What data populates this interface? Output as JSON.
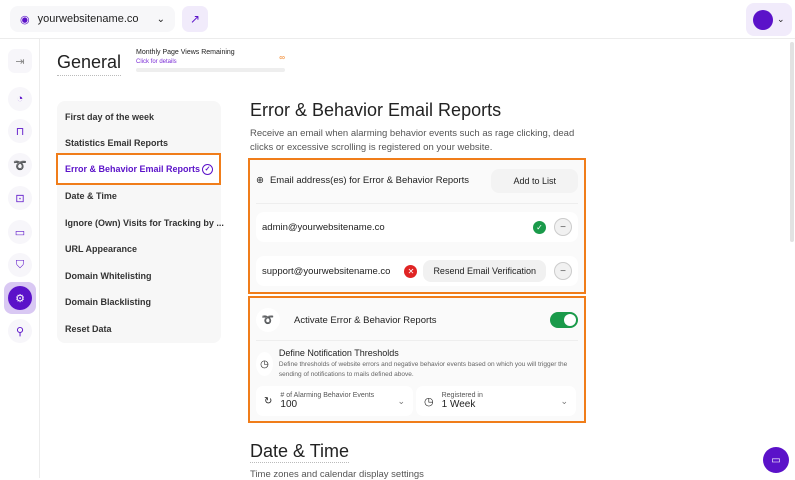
{
  "topbar": {
    "site": "yourwebsitename.co"
  },
  "header": {
    "title": "General",
    "page_views_label": "Monthly Page Views Remaining",
    "page_views_link": "Click for details",
    "page_views_value": "∞"
  },
  "sidebar": {
    "icons": [
      "exit-icon",
      "chart-pie-icon",
      "bag-icon",
      "behavior-icon",
      "scan-icon",
      "chat-icon",
      "shield-icon",
      "gear-icon",
      "location-icon"
    ],
    "active": "gear-icon"
  },
  "menu": {
    "items": [
      {
        "label": "First day of the week"
      },
      {
        "label": "Statistics Email Reports"
      },
      {
        "label": "Error & Behavior Email Reports",
        "active": true
      },
      {
        "label": "Date & Time"
      },
      {
        "label": "Ignore (Own) Visits for Tracking by ..."
      },
      {
        "label": "URL Appearance"
      },
      {
        "label": "Domain Whitelisting"
      },
      {
        "label": "Domain Blacklisting"
      },
      {
        "label": "Reset Data"
      }
    ]
  },
  "section": {
    "title": "Error & Behavior Email Reports",
    "description": "Receive an email when alarming behavior events such as rage clicking, dead clicks or excessive scrolling is registered on your website.",
    "email_label": "Email address(es) for Error & Behavior Reports",
    "add_button": "Add to List",
    "emails": [
      {
        "address": "admin@yourwebsitename.co",
        "verified": true
      },
      {
        "address": "support@yourwebsitename.co",
        "verified": false,
        "resend": "Resend Email Verification"
      }
    ],
    "activate_label": "Activate Error & Behavior Reports",
    "activate_on": true,
    "thresholds_title": "Define Notification Thresholds",
    "thresholds_desc": "Define thresholds of website errors and negative behavior events based on which you will trigger the sending of notifications to mails defined above.",
    "events_label": "# of Alarming Behavior Events",
    "events_value": "100",
    "period_label": "Registered in",
    "period_value": "1 Week"
  },
  "section2": {
    "title": "Date & Time",
    "description": "Time zones and calendar display settings"
  },
  "colors": {
    "accent": "#5b12c9",
    "highlight": "#f07d1a",
    "success": "#1a9a4a",
    "error": "#e02424"
  }
}
